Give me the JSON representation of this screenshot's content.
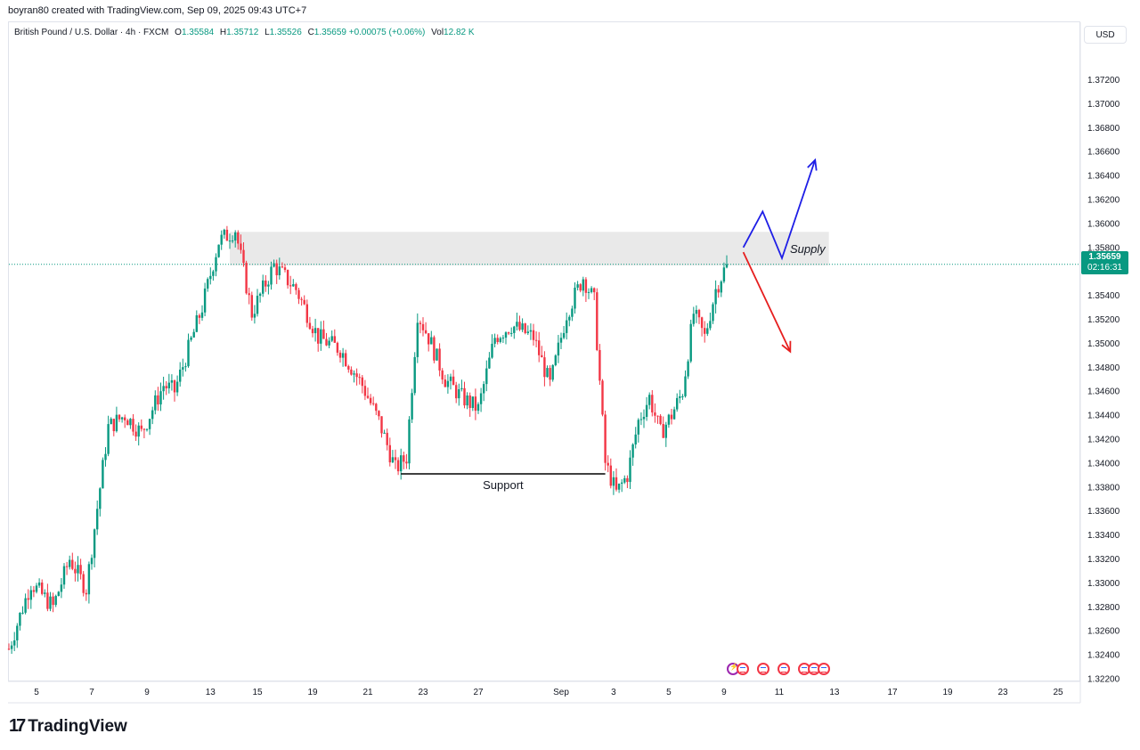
{
  "topline": "boyran80 created with TradingView.com, Sep 09, 2025 09:43 UTC+7",
  "legend": {
    "symbol": "British Pound / U.S. Dollar · 4h · FXCM",
    "open_label": "O",
    "open": "1.35584",
    "high_label": "H",
    "high": "1.35712",
    "low_label": "L",
    "low": "1.35526",
    "close_label": "C",
    "close": "1.35659",
    "change": "+0.00075 (+0.06%)",
    "vol_label": "Vol",
    "vol": "12.82 K"
  },
  "currency": "USD",
  "price_tag": {
    "price": "1.35659",
    "countdown": "02:16:31"
  },
  "footer_brand": "TradingView",
  "colors": {
    "up": "#089981",
    "down": "#f23645",
    "bullish_arrow": "#1e1ee6",
    "bearish_arrow": "#e61e1e",
    "zone": "#e3e3e3"
  },
  "icons": [
    "tradingview-logo-icon",
    "economic-event-icon",
    "flag-us-icon"
  ],
  "chart_data": {
    "type": "candlestick",
    "timeframe": "4h",
    "ylim": [
      1.322,
      1.373
    ],
    "y_ticks": [
      "1.37200",
      "1.37000",
      "1.36800",
      "1.36600",
      "1.36400",
      "1.36200",
      "1.36000",
      "1.35800",
      "1.35600",
      "1.35400",
      "1.35200",
      "1.35000",
      "1.34800",
      "1.34600",
      "1.34400",
      "1.34200",
      "1.34000",
      "1.33800",
      "1.33600",
      "1.33400",
      "1.33200",
      "1.33000",
      "1.32800",
      "1.32600",
      "1.32400",
      "1.32200"
    ],
    "x_ticks": [
      "5",
      "7",
      "9",
      "13",
      "15",
      "19",
      "21",
      "23",
      "27",
      "Sep",
      "3",
      "5",
      "9",
      "11",
      "13",
      "17",
      "19",
      "23",
      "25"
    ],
    "anchors": [
      [
        0,
        1.3245
      ],
      [
        8,
        1.33
      ],
      [
        16,
        1.328
      ],
      [
        22,
        1.332
      ],
      [
        28,
        1.3295
      ],
      [
        36,
        1.343
      ],
      [
        42,
        1.344
      ],
      [
        48,
        1.3425
      ],
      [
        56,
        1.3465
      ],
      [
        60,
        1.346
      ],
      [
        70,
        1.353
      ],
      [
        76,
        1.3585
      ],
      [
        82,
        1.3595
      ],
      [
        88,
        1.3525
      ],
      [
        96,
        1.3565
      ],
      [
        104,
        1.3545
      ],
      [
        112,
        1.3505
      ],
      [
        120,
        1.3495
      ],
      [
        128,
        1.3465
      ],
      [
        134,
        1.3435
      ],
      [
        140,
        1.3395
      ],
      [
        144,
        1.3405
      ],
      [
        148,
        1.3525
      ],
      [
        152,
        1.3505
      ],
      [
        158,
        1.347
      ],
      [
        164,
        1.3455
      ],
      [
        170,
        1.3445
      ],
      [
        176,
        1.3505
      ],
      [
        182,
        1.3515
      ],
      [
        190,
        1.3505
      ],
      [
        196,
        1.3465
      ],
      [
        202,
        1.3525
      ],
      [
        208,
        1.3555
      ],
      [
        212,
        1.3535
      ],
      [
        216,
        1.34
      ],
      [
        220,
        1.3375
      ],
      [
        224,
        1.339
      ],
      [
        228,
        1.3435
      ],
      [
        232,
        1.3455
      ],
      [
        236,
        1.3425
      ],
      [
        240,
        1.344
      ],
      [
        244,
        1.346
      ],
      [
        248,
        1.3525
      ],
      [
        252,
        1.3505
      ],
      [
        256,
        1.3545
      ],
      [
        260,
        1.3566
      ]
    ],
    "supply": {
      "label": "Supply",
      "top": 1.3593,
      "bottom": 1.3565,
      "from_bar": 80,
      "to_bar": 297
    },
    "support": {
      "label": "Support",
      "price": 1.3391,
      "from_bar": 142,
      "to_bar": 216
    },
    "current_price": 1.35659,
    "scenario_up": [
      [
        266,
        1.358
      ],
      [
        273,
        1.361
      ],
      [
        280,
        1.3571
      ],
      [
        292,
        1.3653
      ]
    ],
    "scenario_down": [
      [
        266,
        1.3576
      ],
      [
        283,
        1.3493
      ]
    ]
  }
}
